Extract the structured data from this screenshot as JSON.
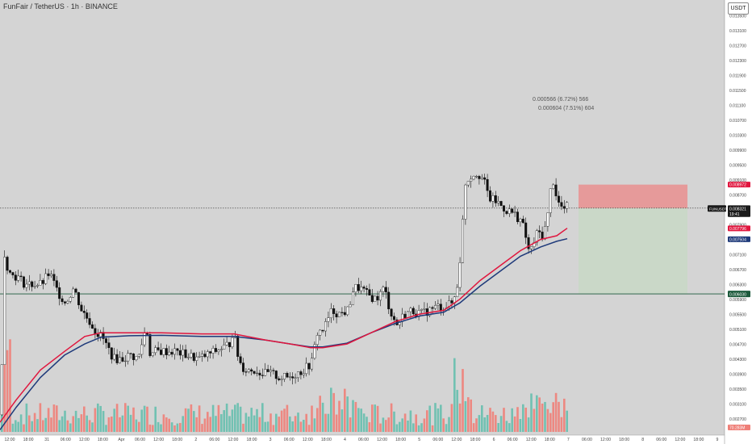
{
  "header": {
    "title": "FunFair / TetherUS · 1h · BINANCE",
    "currency": "USDT"
  },
  "colors": {
    "up": "#ffffff",
    "down": "#111111",
    "ema_fast": "#e0163e",
    "ema_slow": "#1f3a7a",
    "vol_up": "#66bfae",
    "vol_down": "#ef7f78",
    "stop_zone": "#e98f8f",
    "target_zone": "#c9d8c7",
    "support_line": "#1d5a3c"
  },
  "chart_data": {
    "type": "candlestick",
    "symbol": "FUNUSDT",
    "ylim": [
      0.0023,
      0.0137
    ],
    "y_ticks": [
      "0.013500",
      "0.013100",
      "0.012700",
      "0.012300",
      "0.011900",
      "0.011500",
      "0.011100",
      "0.010700",
      "0.010300",
      "0.009900",
      "0.009500",
      "0.009100",
      "0.008700",
      "0.008300",
      "0.007900",
      "0.007500",
      "0.007100",
      "0.006700",
      "0.006300",
      "0.005900",
      "0.005500",
      "0.005100",
      "0.004700",
      "0.004300",
      "0.003900",
      "0.003500",
      "0.003100",
      "0.002700"
    ],
    "x_ticks": [
      "12:00",
      "18:00",
      "31",
      "06:00",
      "12:00",
      "18:00",
      "Apr",
      "06:00",
      "12:00",
      "18:00",
      "2",
      "06:00",
      "12:00",
      "18:00",
      "3",
      "06:00",
      "12:00",
      "18:00",
      "4",
      "06:00",
      "12:00",
      "18:00",
      "5",
      "06:00",
      "12:00",
      "18:00",
      "6",
      "06:00",
      "12:00",
      "18:00",
      "7",
      "06:00",
      "12:00",
      "18:00",
      "8",
      "06:00",
      "12:00",
      "18:00",
      "9"
    ],
    "current_price": {
      "label": "FUNUSDT",
      "value": "0.008321",
      "countdown": "19:41"
    },
    "price_labels": [
      {
        "value": "0.008972",
        "kind": "stop"
      },
      {
        "value": "0.008339",
        "kind": "ask"
      },
      {
        "value": "0.007796",
        "kind": "ema_fast"
      },
      {
        "value": "0.007504",
        "kind": "ema_slow"
      },
      {
        "value": "0.006051",
        "kind": "support"
      },
      {
        "value": "0.006030",
        "kind": "support"
      }
    ],
    "volume_label": "70.283M",
    "support_level": 0.00604,
    "position": {
      "entry": 0.00834,
      "stop": 0.00897,
      "target": 0.00604,
      "labels": [
        "0.000566 (6.72%) 566",
        "0.000604 (7.51%) 604"
      ]
    },
    "anchors": [
      [
        0,
        0.0028
      ],
      [
        3,
        0.0072
      ],
      [
        10,
        0.0066
      ],
      [
        20,
        0.0065
      ],
      [
        30,
        0.0063
      ],
      [
        40,
        0.0063
      ],
      [
        50,
        0.0063
      ],
      [
        60,
        0.0066
      ],
      [
        70,
        0.0061
      ],
      [
        80,
        0.0058
      ],
      [
        90,
        0.0062
      ],
      [
        100,
        0.0056
      ],
      [
        110,
        0.0053
      ],
      [
        118,
        0.005
      ],
      [
        125,
        0.0049
      ],
      [
        132,
        0.0046
      ],
      [
        140,
        0.0043
      ],
      [
        150,
        0.0043
      ],
      [
        160,
        0.0044
      ],
      [
        170,
        0.0043
      ],
      [
        180,
        0.0052
      ],
      [
        185,
        0.0044
      ],
      [
        192,
        0.0045
      ],
      [
        200,
        0.0045
      ],
      [
        215,
        0.0045
      ],
      [
        230,
        0.0044
      ],
      [
        245,
        0.0043
      ],
      [
        255,
        0.0044
      ],
      [
        265,
        0.0045
      ],
      [
        275,
        0.0046
      ],
      [
        283,
        0.0047
      ],
      [
        288,
        0.0051
      ],
      [
        292,
        0.0045
      ],
      [
        298,
        0.0041
      ],
      [
        305,
        0.004
      ],
      [
        315,
        0.004
      ],
      [
        325,
        0.0039
      ],
      [
        335,
        0.0039
      ],
      [
        345,
        0.0038
      ],
      [
        355,
        0.0038
      ],
      [
        365,
        0.0039
      ],
      [
        375,
        0.004
      ],
      [
        385,
        0.0042
      ],
      [
        392,
        0.005
      ],
      [
        400,
        0.0051
      ],
      [
        410,
        0.0056
      ],
      [
        420,
        0.0055
      ],
      [
        430,
        0.0056
      ],
      [
        437,
        0.0062
      ],
      [
        445,
        0.0062
      ],
      [
        455,
        0.006
      ],
      [
        465,
        0.0059
      ],
      [
        475,
        0.0062
      ],
      [
        482,
        0.0056
      ],
      [
        490,
        0.0052
      ],
      [
        500,
        0.0055
      ],
      [
        510,
        0.0056
      ],
      [
        520,
        0.0055
      ],
      [
        530,
        0.0056
      ],
      [
        540,
        0.0057
      ],
      [
        550,
        0.0057
      ],
      [
        560,
        0.0058
      ],
      [
        565,
        0.0062
      ],
      [
        570,
        0.0072
      ],
      [
        575,
        0.009
      ],
      [
        582,
        0.0092
      ],
      [
        590,
        0.0093
      ],
      [
        598,
        0.0091
      ],
      [
        605,
        0.0086
      ],
      [
        615,
        0.0085
      ],
      [
        625,
        0.0083
      ],
      [
        635,
        0.0082
      ],
      [
        645,
        0.008
      ],
      [
        650,
        0.0076
      ],
      [
        655,
        0.0071
      ],
      [
        660,
        0.0074
      ],
      [
        665,
        0.0077
      ],
      [
        672,
        0.0076
      ],
      [
        678,
        0.0082
      ],
      [
        683,
        0.0092
      ],
      [
        690,
        0.0085
      ],
      [
        697,
        0.0083
      ],
      [
        703,
        0.0084
      ]
    ],
    "ema_fast_points": [
      [
        0,
        0.0026
      ],
      [
        20,
        0.0032
      ],
      [
        50,
        0.004
      ],
      [
        80,
        0.0045
      ],
      [
        105,
        0.0049
      ],
      [
        125,
        0.005
      ],
      [
        160,
        0.005
      ],
      [
        200,
        0.005
      ],
      [
        250,
        0.00497
      ],
      [
        290,
        0.00497
      ],
      [
        330,
        0.0048
      ],
      [
        360,
        0.0047
      ],
      [
        385,
        0.0046
      ],
      [
        400,
        0.0046
      ],
      [
        430,
        0.0047
      ],
      [
        460,
        0.005
      ],
      [
        490,
        0.0053
      ],
      [
        520,
        0.0055
      ],
      [
        550,
        0.0056
      ],
      [
        570,
        0.0059
      ],
      [
        595,
        0.0064
      ],
      [
        620,
        0.0068
      ],
      [
        645,
        0.0072
      ],
      [
        670,
        0.0075
      ],
      [
        690,
        0.0076
      ],
      [
        703,
        0.0078
      ]
    ],
    "ema_slow_points": [
      [
        0,
        0.0024
      ],
      [
        20,
        0.003
      ],
      [
        50,
        0.0038
      ],
      [
        80,
        0.0044
      ],
      [
        105,
        0.0047
      ],
      [
        125,
        0.00488
      ],
      [
        160,
        0.00492
      ],
      [
        200,
        0.00493
      ],
      [
        250,
        0.0049
      ],
      [
        290,
        0.0049
      ],
      [
        330,
        0.0048
      ],
      [
        360,
        0.0047
      ],
      [
        385,
        0.00462
      ],
      [
        400,
        0.00462
      ],
      [
        430,
        0.00472
      ],
      [
        460,
        0.005
      ],
      [
        490,
        0.00525
      ],
      [
        520,
        0.00545
      ],
      [
        550,
        0.00555
      ],
      [
        570,
        0.0058
      ],
      [
        595,
        0.00625
      ],
      [
        620,
        0.00665
      ],
      [
        645,
        0.00705
      ],
      [
        670,
        0.0073
      ],
      [
        690,
        0.00745
      ],
      [
        703,
        0.00752
      ]
    ]
  }
}
